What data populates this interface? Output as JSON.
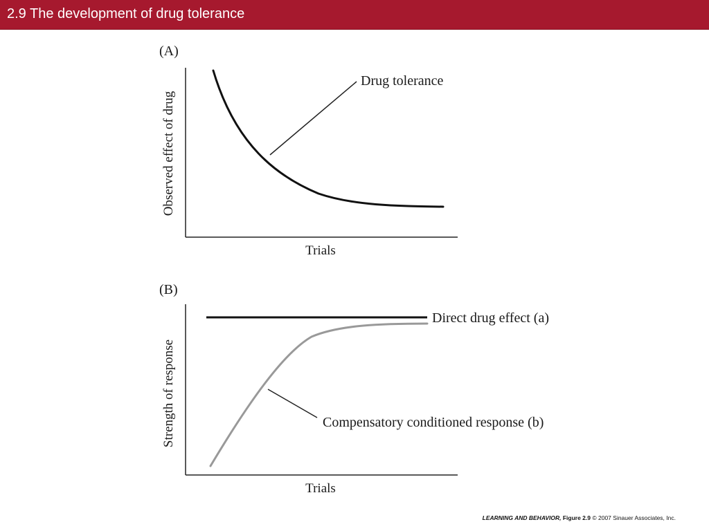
{
  "header": {
    "title": "2.9  The development of drug tolerance"
  },
  "panel_a": {
    "label": "(A)",
    "ylabel": "Observed effect of drug",
    "xlabel": "Trials",
    "callout": "Drug tolerance"
  },
  "panel_b": {
    "label": "(B)",
    "ylabel": "Strength of response",
    "xlabel": "Trials",
    "callout_direct": "Direct drug effect (a)",
    "callout_compensatory": "Compensatory conditioned response (b)"
  },
  "footer": {
    "book": "LEARNING AND BEHAVIOR,",
    "figure": "Figure 2.9",
    "copyright": "© 2007 Sinauer Associates, Inc."
  },
  "colors": {
    "header_bg": "#a6192e",
    "curve_dark": "#111111",
    "curve_gray": "#999999"
  }
}
